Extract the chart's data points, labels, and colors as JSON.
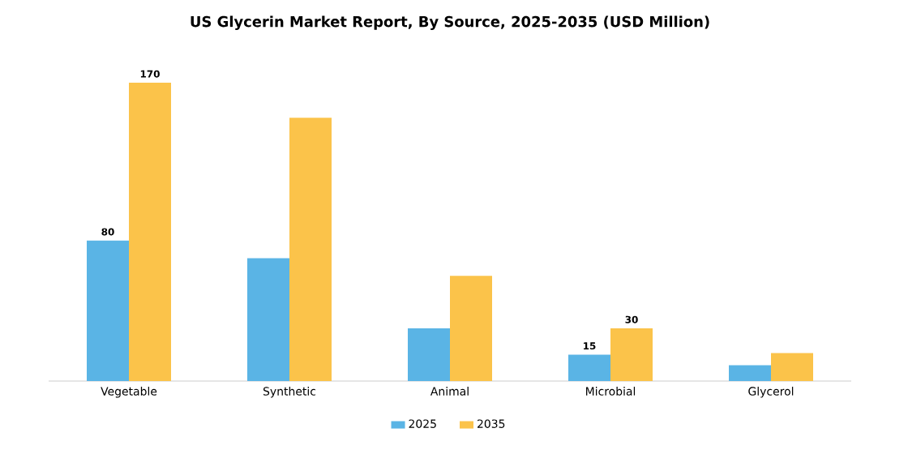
{
  "chart_data": {
    "type": "bar",
    "title": "US Glycerin Market Report, By Source, 2025-2035 (USD Million)",
    "categories": [
      "Vegetable",
      "Synthetic",
      "Animal",
      "Microbial",
      "Glycerol"
    ],
    "series": [
      {
        "name": "2025",
        "color": "#5ab4e5",
        "values": [
          80,
          70,
          30,
          15,
          9
        ],
        "value_labels": [
          "80",
          null,
          null,
          "15",
          null
        ]
      },
      {
        "name": "2035",
        "color": "#fbc34a",
        "values": [
          170,
          150,
          60,
          30,
          16
        ],
        "value_labels": [
          "170",
          null,
          null,
          "30",
          null
        ]
      }
    ],
    "legend": "bottom",
    "grid": false
  }
}
